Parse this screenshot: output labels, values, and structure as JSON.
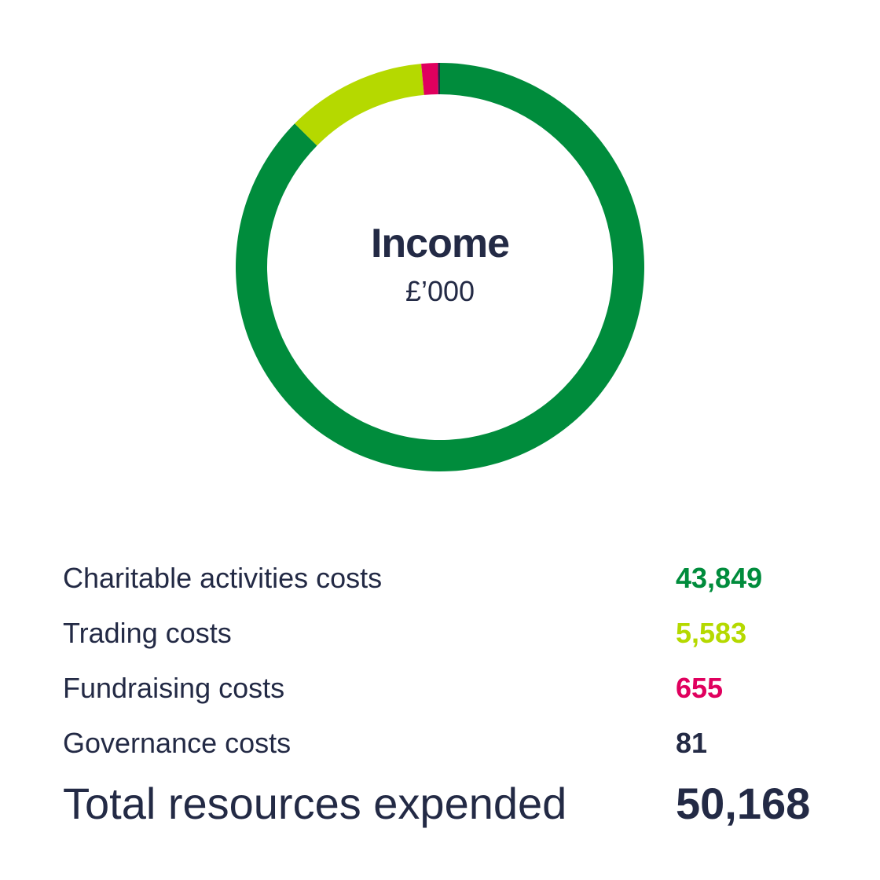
{
  "chart_data": {
    "type": "pie",
    "title": "Income",
    "subtitle": "£’000",
    "categories": [
      "Charitable activities costs",
      "Trading costs",
      "Fundraising costs",
      "Governance costs"
    ],
    "values": [
      43849,
      5583,
      655,
      81
    ],
    "display_values": [
      "43,849",
      "5,583",
      "655",
      "81"
    ],
    "colors": [
      "#008c3c",
      "#b5d900",
      "#e0005e",
      "#232a45"
    ],
    "total_label": "Total resources expended",
    "total_value": "50,168",
    "donut": true
  }
}
